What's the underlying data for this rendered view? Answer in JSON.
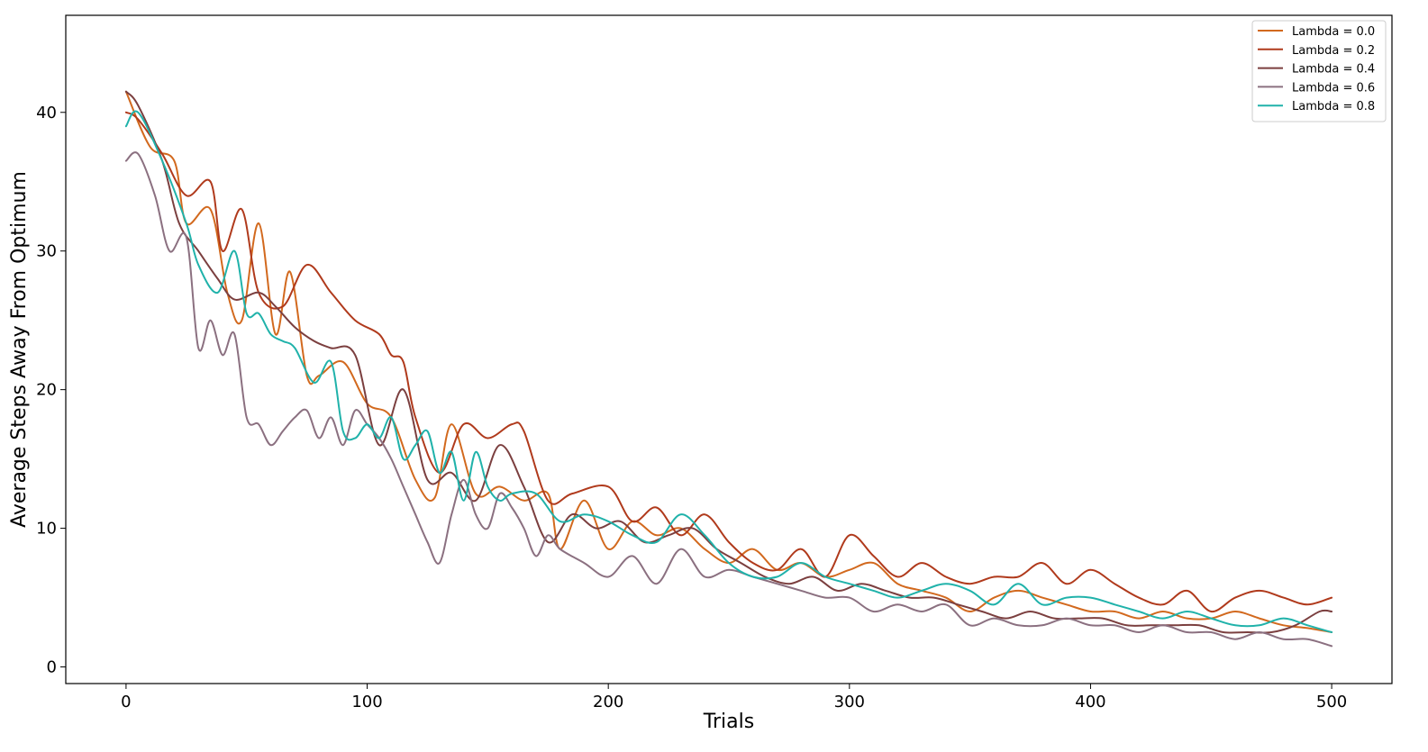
{
  "chart_data": {
    "type": "line",
    "title": "",
    "xlabel": "Trials",
    "ylabel": "Average Steps Away From Optimum",
    "xlim": [
      -25,
      525
    ],
    "ylim": [
      -1.2,
      47
    ],
    "xticks": [
      0,
      100,
      200,
      300,
      400,
      500
    ],
    "yticks": [
      0,
      10,
      20,
      30,
      40
    ],
    "grid": false,
    "legend_position": "top-right",
    "series": [
      {
        "name": "Lambda = 0.0",
        "color": "#d2691e",
        "x": [
          0,
          10,
          20,
          25,
          35,
          42,
          48,
          55,
          62,
          68,
          75,
          80,
          90,
          100,
          110,
          120,
          128,
          135,
          145,
          155,
          165,
          175,
          180,
          190,
          200,
          210,
          220,
          230,
          240,
          250,
          260,
          270,
          280,
          290,
          300,
          310,
          320,
          330,
          340,
          350,
          360,
          370,
          380,
          390,
          400,
          410,
          420,
          430,
          440,
          450,
          460,
          470,
          480,
          490,
          500
        ],
        "y": [
          41.5,
          37.5,
          36.5,
          32,
          33,
          27,
          25,
          32,
          24,
          28.5,
          21,
          21,
          22,
          19,
          18,
          13.5,
          12.2,
          17.5,
          12.5,
          13,
          12,
          12.5,
          8.5,
          12,
          8.5,
          10.5,
          9.5,
          10,
          8.5,
          7.5,
          8.5,
          7,
          7.5,
          6.5,
          7,
          7.5,
          6,
          5.5,
          5,
          4,
          5,
          5.5,
          5,
          4.5,
          4,
          4,
          3.5,
          4,
          3.5,
          3.5,
          4,
          3.5,
          3,
          2.8,
          2.5
        ]
      },
      {
        "name": "Lambda = 0.2",
        "color": "#b03a1c",
        "x": [
          0,
          5,
          15,
          25,
          35,
          40,
          48,
          55,
          65,
          75,
          85,
          95,
          105,
          110,
          115,
          120,
          130,
          140,
          150,
          160,
          165,
          175,
          185,
          200,
          210,
          220,
          230,
          240,
          250,
          260,
          270,
          280,
          290,
          300,
          310,
          320,
          330,
          340,
          350,
          360,
          370,
          380,
          390,
          400,
          410,
          420,
          430,
          440,
          450,
          460,
          470,
          480,
          490,
          500
        ],
        "y": [
          40,
          39.5,
          37,
          34,
          35,
          30,
          33,
          27,
          26,
          29,
          27,
          25,
          24,
          22.5,
          22,
          18,
          14,
          17.5,
          16.5,
          17.5,
          17,
          12,
          12.5,
          13,
          10.5,
          11.5,
          9.5,
          11,
          9,
          7.5,
          7,
          8.5,
          6.5,
          9.5,
          8,
          6.5,
          7.5,
          6.5,
          6,
          6.5,
          6.5,
          7.5,
          6,
          7,
          6,
          5,
          4.5,
          5.5,
          4,
          5,
          5.5,
          5,
          4.5,
          5
        ]
      },
      {
        "name": "Lambda = 0.4",
        "color": "#7b3f3f",
        "x": [
          0,
          5,
          15,
          22,
          30,
          38,
          45,
          55,
          62,
          70,
          78,
          85,
          95,
          105,
          115,
          125,
          135,
          145,
          155,
          165,
          175,
          185,
          195,
          205,
          215,
          225,
          235,
          245,
          255,
          265,
          275,
          285,
          295,
          305,
          315,
          325,
          335,
          345,
          355,
          365,
          375,
          385,
          395,
          405,
          415,
          425,
          435,
          445,
          455,
          465,
          475,
          485,
          495,
          500
        ],
        "y": [
          41.5,
          40.5,
          36.5,
          32,
          30,
          28,
          26.5,
          27,
          26,
          24.5,
          23.5,
          23,
          22.5,
          16,
          20,
          13.5,
          14,
          12,
          16,
          13,
          9,
          11,
          10,
          10.5,
          9,
          9.5,
          10,
          8.5,
          7.5,
          6.5,
          6,
          6.5,
          5.5,
          6,
          5.5,
          5,
          5,
          4.5,
          4,
          3.5,
          4,
          3.5,
          3.5,
          3.5,
          3,
          3,
          3,
          3,
          2.5,
          2.5,
          2.5,
          3,
          4,
          4
        ]
      },
      {
        "name": "Lambda = 0.6",
        "color": "#8b7080",
        "x": [
          0,
          5,
          12,
          18,
          25,
          30,
          35,
          40,
          45,
          50,
          55,
          60,
          65,
          70,
          75,
          80,
          85,
          90,
          95,
          100,
          105,
          110,
          115,
          120,
          125,
          130,
          135,
          140,
          145,
          150,
          155,
          160,
          165,
          170,
          175,
          180,
          190,
          200,
          210,
          220,
          230,
          240,
          250,
          260,
          270,
          280,
          290,
          300,
          310,
          320,
          330,
          340,
          350,
          360,
          370,
          380,
          390,
          400,
          410,
          420,
          430,
          440,
          450,
          460,
          470,
          480,
          490,
          500
        ],
        "y": [
          36.5,
          37,
          34,
          30,
          31,
          23,
          25,
          22.5,
          24,
          18,
          17.5,
          16,
          17,
          18,
          18.5,
          16.5,
          18,
          16,
          18.5,
          17.5,
          16.5,
          15,
          13,
          11,
          9,
          7.5,
          11,
          13.5,
          11,
          10,
          12.5,
          11.5,
          10,
          8,
          9.5,
          8.5,
          7.5,
          6.5,
          8,
          6,
          8.5,
          6.5,
          7,
          6.5,
          6,
          5.5,
          5,
          5,
          4,
          4.5,
          4,
          4.5,
          3,
          3.5,
          3,
          3,
          3.5,
          3,
          3,
          2.5,
          3,
          2.5,
          2.5,
          2,
          2.5,
          2,
          2,
          1.5
        ]
      },
      {
        "name": "Lambda = 0.8",
        "color": "#20b2aa",
        "x": [
          0,
          5,
          15,
          25,
          30,
          38,
          45,
          50,
          55,
          60,
          65,
          70,
          78,
          85,
          90,
          95,
          100,
          105,
          110,
          115,
          120,
          125,
          130,
          135,
          140,
          145,
          150,
          155,
          160,
          170,
          180,
          190,
          200,
          210,
          220,
          230,
          240,
          250,
          260,
          270,
          280,
          290,
          300,
          310,
          320,
          330,
          340,
          350,
          360,
          370,
          380,
          390,
          400,
          410,
          420,
          430,
          440,
          450,
          460,
          470,
          480,
          490,
          500
        ],
        "y": [
          39,
          40,
          36.5,
          32,
          29,
          27,
          30,
          25.5,
          25.5,
          24,
          23.5,
          23,
          20.5,
          22,
          17,
          16.5,
          17.5,
          16.5,
          18,
          15,
          16,
          17,
          14,
          15.5,
          12,
          15.5,
          13,
          12,
          12.5,
          12.5,
          10.5,
          11,
          10.5,
          9.5,
          9,
          11,
          9.5,
          7.5,
          6.5,
          6.5,
          7.5,
          6.5,
          6,
          5.5,
          5,
          5.5,
          6,
          5.5,
          4.5,
          6,
          4.5,
          5,
          5,
          4.5,
          4,
          3.5,
          4,
          3.5,
          3,
          3,
          3.5,
          3,
          2.5
        ]
      }
    ]
  }
}
